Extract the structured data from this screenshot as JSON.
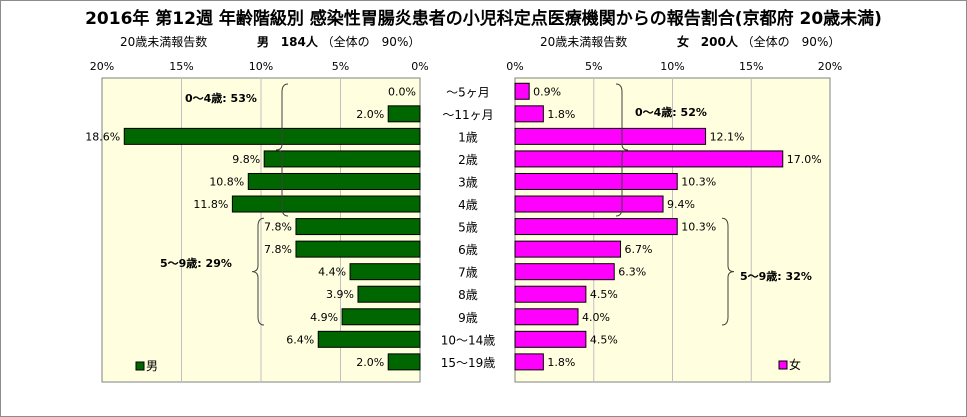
{
  "title": "2016年 第12週 年齢階級別 感染性胃腸炎患者の小児科定点医療機関からの報告割合(京都府 20歳未満)",
  "left_panel": {
    "label": "20歳未満報告数",
    "sex": "男",
    "count_text": "184人",
    "ratio_text": "（全体の　90%）",
    "legend": "男",
    "group_labels": [
      "0～4歳: 53%",
      "5～9歳: 29%"
    ]
  },
  "right_panel": {
    "label": "20歳未満報告数",
    "sex": "女",
    "count_text": "200人",
    "ratio_text": "（全体の　90%）",
    "legend": "女",
    "group_labels": [
      "0～4歳: 52%",
      "5～9歳: 32%"
    ]
  },
  "chart_data": {
    "type": "bar",
    "orientation": "horizontal",
    "categories": [
      "～5ヶ月",
      "～11ヶ月",
      "1歳",
      "2歳",
      "3歳",
      "4歳",
      "5歳",
      "6歳",
      "7歳",
      "8歳",
      "9歳",
      "10～14歳",
      "15～19歳"
    ],
    "xlim": [
      0,
      20
    ],
    "tick_labels": [
      "0%",
      "5%",
      "10%",
      "15%",
      "20%"
    ],
    "series": [
      {
        "name": "男",
        "color": "#006600",
        "values": [
          0.0,
          2.0,
          18.6,
          9.8,
          10.8,
          11.8,
          7.8,
          7.8,
          4.4,
          3.9,
          4.9,
          6.4,
          2.0
        ],
        "labels": [
          "0.0%",
          "2.0%",
          "18.6%",
          "9.8%",
          "10.8%",
          "11.8%",
          "7.8%",
          "7.8%",
          "4.4%",
          "3.9%",
          "4.9%",
          "6.4%",
          "2.0%"
        ]
      },
      {
        "name": "女",
        "color": "#ff00ff",
        "values": [
          0.9,
          1.8,
          12.1,
          17.0,
          10.3,
          9.4,
          10.3,
          6.7,
          6.3,
          4.5,
          4.0,
          4.5,
          1.8
        ],
        "labels": [
          "0.9%",
          "1.8%",
          "12.1%",
          "17.0%",
          "10.3%",
          "9.4%",
          "10.3%",
          "6.7%",
          "6.3%",
          "4.5%",
          "4.0%",
          "4.5%",
          "1.8%"
        ]
      }
    ],
    "plot_background": "#ffffe0",
    "grid": true
  }
}
